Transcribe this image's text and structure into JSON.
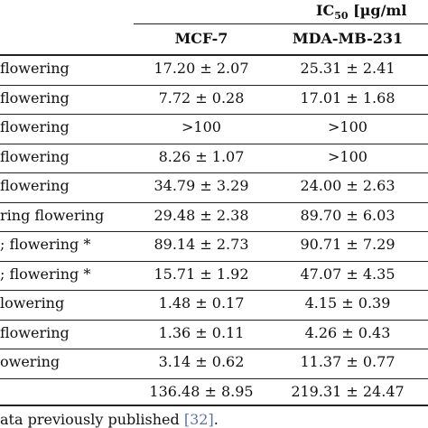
{
  "header": {
    "ic50_main": "IC",
    "ic50_sub": "50",
    "ic50_unit": " [µg/ml",
    "col_mcf7": "MCF-7",
    "col_mda": "MDA-MB-231"
  },
  "rows": [
    {
      "label": "flowering",
      "mcf7": "17.20 ± 2.07",
      "mda": "25.31 ± 2.41"
    },
    {
      "label": "flowering",
      "mcf7": "7.72 ± 0.28",
      "mda": "17.01 ± 1.68"
    },
    {
      "label": "flowering",
      "mcf7": ">100",
      "mda": ">100"
    },
    {
      "label": "flowering",
      "mcf7": "8.26 ± 1.07",
      "mda": ">100"
    },
    {
      "label": "flowering",
      "mcf7": "34.79 ± 3.29",
      "mda": "24.00 ± 2.63"
    },
    {
      "label": "ring flowering",
      "mcf7": "29.48 ± 2.38",
      "mda": "89.70 ± 6.03"
    },
    {
      "label": "; flowering *",
      "mcf7": "89.14 ± 2.73",
      "mda": "90.71 ± 7.29"
    },
    {
      "label": "; flowering *",
      "mcf7": "15.71 ± 1.92",
      "mda": "47.07 ± 4.35"
    },
    {
      "label": "lowering",
      "mcf7": "1.48 ± 0.17",
      "mda": "4.15 ± 0.39"
    },
    {
      "label": "flowering",
      "mcf7": "1.36 ± 0.11",
      "mda": "4.26 ± 0.43"
    },
    {
      "label": "owering",
      "mcf7": "3.14 ± 0.62",
      "mda": "11.37 ± 0.77"
    },
    {
      "label": "",
      "mcf7": "136.48 ± 8.95",
      "mda": "219.31 ± 24.47"
    }
  ],
  "footnote": {
    "text": "ata previously published ",
    "ref": "[32]",
    "end": "."
  }
}
